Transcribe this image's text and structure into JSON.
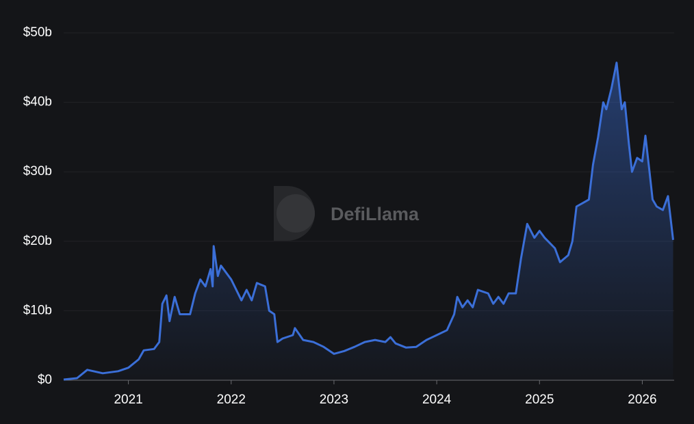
{
  "chart_data": {
    "type": "area",
    "watermark": "DefiLlama",
    "color": "#3b6fd8",
    "grid": true,
    "x": [
      2020.37,
      2020.5,
      2020.6,
      2020.75,
      2020.9,
      2021.0,
      2021.1,
      2021.15,
      2021.25,
      2021.3,
      2021.33,
      2021.37,
      2021.4,
      2021.45,
      2021.5,
      2021.6,
      2021.65,
      2021.7,
      2021.75,
      2021.8,
      2021.82,
      2021.83,
      2021.87,
      2021.9,
      2022.0,
      2022.05,
      2022.1,
      2022.15,
      2022.2,
      2022.25,
      2022.33,
      2022.37,
      2022.42,
      2022.45,
      2022.5,
      2022.6,
      2022.62,
      2022.7,
      2022.8,
      2022.9,
      2023.0,
      2023.1,
      2023.2,
      2023.3,
      2023.4,
      2023.5,
      2023.55,
      2023.6,
      2023.7,
      2023.8,
      2023.9,
      2024.0,
      2024.1,
      2024.17,
      2024.2,
      2024.25,
      2024.3,
      2024.35,
      2024.4,
      2024.5,
      2024.55,
      2024.6,
      2024.65,
      2024.7,
      2024.77,
      2024.82,
      2024.88,
      2024.95,
      2025.0,
      2025.05,
      2025.15,
      2025.2,
      2025.28,
      2025.32,
      2025.36,
      2025.42,
      2025.48,
      2025.52,
      2025.57,
      2025.62,
      2025.65,
      2025.7,
      2025.75,
      2025.8,
      2025.83,
      2025.87,
      2025.9,
      2025.95,
      2026.0,
      2026.03,
      2026.07,
      2026.1,
      2026.14,
      2026.2,
      2026.25,
      2026.3
    ],
    "values": [
      0.1,
      0.3,
      1.5,
      1.0,
      1.3,
      1.8,
      3.0,
      4.3,
      4.5,
      5.5,
      11.0,
      12.2,
      8.5,
      12.0,
      9.5,
      9.5,
      12.5,
      14.5,
      13.5,
      16,
      13.5,
      19.3,
      15,
      16.5,
      14.5,
      13,
      11.5,
      13,
      11.5,
      14,
      13.5,
      10,
      9.5,
      5.5,
      6,
      6.5,
      7.5,
      5.8,
      5.5,
      4.8,
      3.8,
      4.2,
      4.8,
      5.5,
      5.8,
      5.5,
      6.2,
      5.3,
      4.7,
      4.8,
      5.8,
      6.5,
      7.2,
      9.5,
      12.0,
      10.5,
      11.5,
      10.5,
      13,
      12.5,
      11,
      12,
      11,
      12.5,
      12.5,
      17.5,
      22.5,
      20.5,
      21.5,
      20.5,
      19,
      17,
      18,
      20,
      25,
      25.5,
      26,
      31,
      35,
      40,
      39,
      42,
      45.7,
      39,
      40,
      34,
      30,
      32,
      31.5,
      35.2,
      30,
      26,
      25,
      24.5,
      26.5,
      20.2
    ],
    "xlim": [
      2020.37,
      2026.31
    ],
    "xticks": [
      2021,
      2022,
      2023,
      2024,
      2025,
      2026
    ],
    "ylim": [
      0,
      50
    ],
    "yticks": [
      {
        "value": 0,
        "label": "$0"
      },
      {
        "value": 10,
        "label": "$10b"
      },
      {
        "value": 20,
        "label": "$20b"
      },
      {
        "value": 30,
        "label": "$30b"
      },
      {
        "value": 40,
        "label": "$40b"
      },
      {
        "value": 50,
        "label": "$50b"
      }
    ]
  }
}
